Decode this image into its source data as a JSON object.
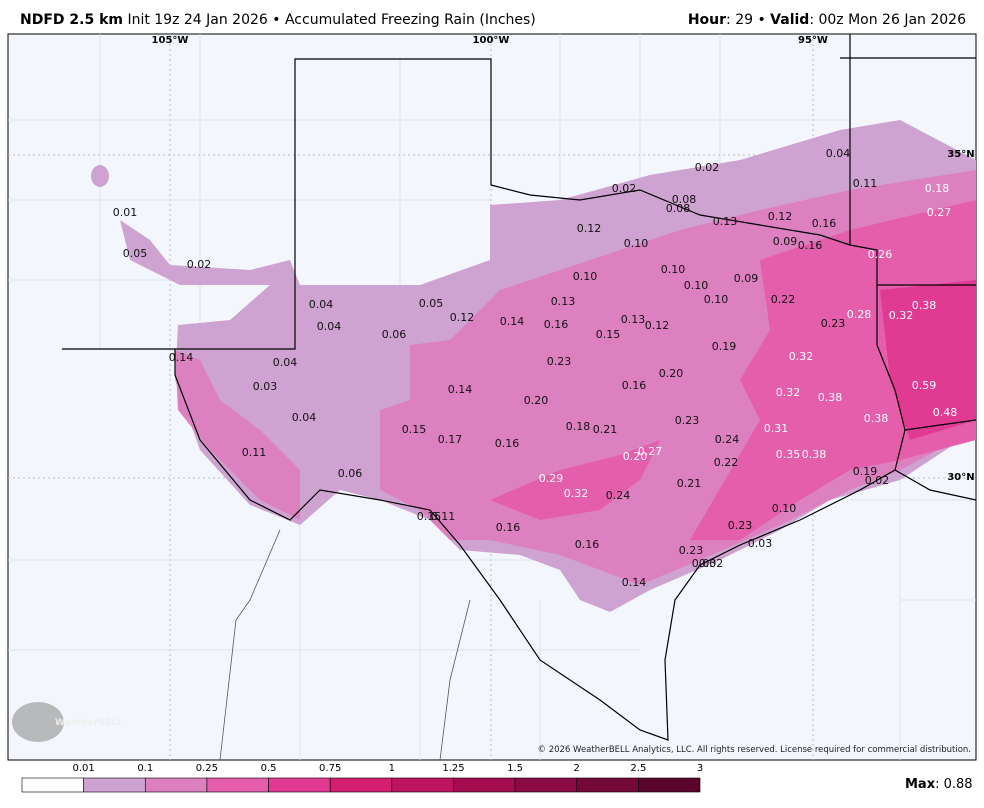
{
  "header": {
    "model": "NDFD 2.5 km",
    "description": "Init 19z 24 Jan 2026 • Accumulated Freezing Rain (Inches)",
    "hour_label": "Hour",
    "hour_value": ": 29 • ",
    "valid_label": "Valid",
    "valid_value": ": 00z Mon 26 Jan 2026"
  },
  "map": {
    "longitudes": [
      "105°W",
      "100°W",
      "95°W"
    ],
    "latitudes": [
      "35°N",
      "30°N"
    ],
    "labels": [
      "0.04",
      "0.02",
      "0.02",
      "0.11",
      "0.18",
      "0.01",
      "0.08",
      "0.08",
      "0.13",
      "0.12",
      "0.16",
      "0.27",
      "0.12",
      "0.10",
      "0.09",
      "0.16",
      "0.05",
      "0.26",
      "0.02",
      "0.10",
      "0.10",
      "0.09",
      "0.10",
      "0.04",
      "0.05",
      "0.13",
      "0.10",
      "0.22",
      "0.38",
      "0.12",
      "0.14",
      "0.16",
      "0.13",
      "0.12",
      "0.28",
      "0.32",
      "0.04",
      "0.06",
      "0.15",
      "0.23",
      "0.19",
      "0.14",
      "0.04",
      "0.23",
      "0.32",
      "0.20",
      "0.03",
      "0.14",
      "0.16",
      "0.59",
      "0.32",
      "0.38",
      "0.20",
      "0.04",
      "0.23",
      "0.48",
      "0.38",
      "0.15",
      "0.17",
      "0.18",
      "0.21",
      "0.31",
      "0.16",
      "0.24",
      "0.20",
      "0.27",
      "0.35",
      "0.38",
      "0.11",
      "0.22",
      "0.19",
      "0.02",
      "0.06",
      "0.29",
      "0.21",
      "0.32",
      "0.24",
      "0.10",
      "0.15",
      "0.11",
      "0.16",
      "0.23",
      "0.16",
      "0.03",
      "0.23",
      "0.03",
      "0.02",
      "0.14"
    ],
    "logo": "WeatherBELL",
    "copyright": "© 2026 WeatherBELL Analytics, LLC. All rights reserved. License required for commercial distribution."
  },
  "colorbar": {
    "ticks": [
      "0.01",
      "0.1",
      "0.25",
      "0.5",
      "0.75",
      "1",
      "1.25",
      "1.5",
      "2",
      "2.5",
      "3"
    ],
    "colors": [
      "#ffffff",
      "#cfa3d1",
      "#dd80c0",
      "#e45eab",
      "#e03a92",
      "#d41f70",
      "#bd1460",
      "#a50d50",
      "#8c0a44",
      "#740839",
      "#5c052c"
    ]
  },
  "max": {
    "label": "Max",
    "value": ": 0.88"
  }
}
